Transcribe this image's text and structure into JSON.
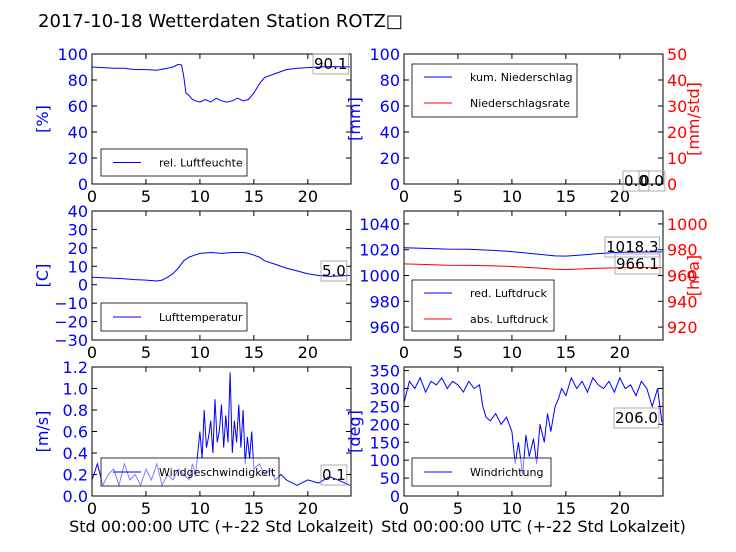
{
  "page_title": "2017-10-18 Wetterdaten Station ROTZ□",
  "colors": {
    "blue": "#0000ff",
    "red": "#ff0000",
    "black": "#000000",
    "light_blue": "#7777ff"
  },
  "chart_data": [
    {
      "id": "humidity",
      "type": "line",
      "xlim": [
        0,
        24
      ],
      "x_ticks": [
        "0",
        "5",
        "10",
        "15",
        "20"
      ],
      "ylim": [
        0,
        100
      ],
      "y_ticks": [
        "0",
        "20",
        "40",
        "60",
        "80",
        "100"
      ],
      "ylabel": "[%]",
      "ylabel_color": "#0000ff",
      "legend_position": "lower-left",
      "series": [
        {
          "name": "rel. Luftfeuchte",
          "color": "#0000ff",
          "x": [
            0,
            1,
            2,
            3,
            4,
            5,
            6,
            7,
            7.5,
            8,
            8.3,
            8.5,
            8.7,
            9,
            9.3,
            9.6,
            10,
            10.5,
            11,
            11.5,
            12,
            12.5,
            13,
            13.5,
            14,
            14.5,
            15,
            15.5,
            16,
            17,
            18,
            19,
            20,
            21,
            22,
            23,
            23.9
          ],
          "y": [
            90,
            89.5,
            89,
            89,
            88,
            88,
            87.5,
            89,
            90,
            92,
            91.5,
            83,
            70,
            68,
            65,
            64,
            63,
            65,
            63,
            66,
            64,
            63,
            64,
            66,
            64,
            65,
            70,
            77,
            82,
            85,
            88,
            89,
            89.5,
            90,
            90.3,
            90.2,
            90.1
          ]
        }
      ],
      "last_values": [
        "90.1"
      ]
    },
    {
      "id": "precipitation",
      "type": "line",
      "xlim": [
        0,
        24
      ],
      "x_ticks": [
        "0",
        "5",
        "10",
        "15",
        "20"
      ],
      "ylim": [
        0,
        100
      ],
      "y_ticks": [
        "0",
        "20",
        "40",
        "60",
        "80",
        "100"
      ],
      "ylabel": "[mm]",
      "ylabel_color": "#0000ff",
      "y2lim": [
        0,
        50
      ],
      "y2_ticks": [
        "0",
        "10",
        "20",
        "30",
        "40",
        "50"
      ],
      "y2label": "[mm/std]",
      "y2label_color": "#ff0000",
      "legend_position": "upper-left",
      "series": [
        {
          "name": "kum. Niederschlag",
          "color": "#0000ff",
          "axis": "left",
          "x": [
            0,
            24
          ],
          "y": [
            0,
            0
          ]
        },
        {
          "name": "Niederschlagsrate",
          "color": "#ff0000",
          "axis": "right",
          "x": [
            0,
            24
          ],
          "y": [
            0,
            0
          ]
        }
      ],
      "last_values": [
        "0.0",
        "0.0"
      ]
    },
    {
      "id": "temperature",
      "type": "line",
      "xlim": [
        0,
        24
      ],
      "x_ticks": [
        "0",
        "5",
        "10",
        "15",
        "20"
      ],
      "ylim": [
        -30,
        40
      ],
      "y_ticks": [
        "−30",
        "−20",
        "−10",
        "0",
        "10",
        "20",
        "30",
        "40"
      ],
      "ylabel": "[C]",
      "ylabel_color": "#0000ff",
      "legend_position": "lower-left",
      "series": [
        {
          "name": "Lufttemperatur",
          "color": "#0000ff",
          "x": [
            0,
            1,
            2,
            3,
            4,
            5,
            6,
            6.5,
            7,
            7.5,
            8,
            8.5,
            9,
            9.5,
            10,
            11,
            12,
            13,
            14,
            14.5,
            15,
            15.5,
            16,
            17,
            18,
            19,
            20,
            21,
            22,
            23,
            23.9
          ],
          "y": [
            4,
            3.8,
            3.5,
            3.2,
            2.8,
            2.5,
            2,
            2.5,
            4,
            6,
            9,
            13,
            15,
            16,
            17,
            17.5,
            17,
            17.5,
            17.5,
            17,
            16,
            15,
            13,
            11,
            9,
            7.5,
            6,
            5,
            4.5,
            4.8,
            5.0
          ]
        }
      ],
      "last_values": [
        "5.0"
      ]
    },
    {
      "id": "pressure",
      "type": "line",
      "xlim": [
        0,
        24
      ],
      "x_ticks": [
        "0",
        "5",
        "10",
        "15",
        "20"
      ],
      "ylim": [
        950,
        1050
      ],
      "y_ticks": [
        "960",
        "980",
        "1000",
        "1020",
        "1040"
      ],
      "ylabel": "",
      "y2lim": [
        910,
        1010
      ],
      "y2_ticks": [
        "920",
        "940",
        "960",
        "980",
        "1000"
      ],
      "y2label": "[hPa]",
      "y2label_color": "#ff0000",
      "legend_position": "lower-left",
      "series": [
        {
          "name": "red. Luftdruck",
          "color": "#0000ff",
          "axis": "left",
          "x": [
            0,
            2,
            4,
            6,
            8,
            10,
            12,
            14,
            15,
            16,
            18,
            20,
            22,
            23.9
          ],
          "y": [
            1021.5,
            1021,
            1020.5,
            1020.3,
            1019.5,
            1018.5,
            1016.8,
            1015.2,
            1015,
            1015.6,
            1017,
            1018,
            1018.2,
            1018.3
          ]
        },
        {
          "name": "abs. Luftdruck",
          "color": "#ff0000",
          "axis": "right",
          "x": [
            0,
            2,
            4,
            6,
            8,
            10,
            12,
            14,
            15,
            16,
            18,
            20,
            22,
            23.9
          ],
          "y": [
            969,
            968.5,
            968,
            967.8,
            967.5,
            967,
            966,
            964.8,
            964.6,
            965,
            965.6,
            966,
            966.1,
            966.1
          ]
        }
      ],
      "last_values": [
        "1018.3",
        "966.1"
      ]
    },
    {
      "id": "windspeed",
      "type": "line",
      "xlim": [
        0,
        24
      ],
      "x_ticks": [
        "0",
        "5",
        "10",
        "15",
        "20"
      ],
      "ylim": [
        0,
        1.2
      ],
      "y_ticks": [
        "0.0",
        "0.2",
        "0.4",
        "0.6",
        "0.8",
        "1.0",
        "1.2"
      ],
      "ylabel": "[m/s]",
      "ylabel_color": "#0000ff",
      "xlabel": "Std 00:00:00 UTC (+-22 Std Lokalzeit)",
      "legend_position": "lower-left",
      "series": [
        {
          "name": "Windgeschwindigkeit",
          "color": "#0000ff",
          "x": [
            0,
            0.5,
            1,
            1.5,
            2,
            2.5,
            3,
            3.5,
            4,
            4.5,
            5,
            5.5,
            6,
            6.5,
            7,
            7.5,
            8,
            8.5,
            9,
            9.3,
            9.6,
            10,
            10.2,
            10.4,
            10.6,
            10.8,
            11,
            11.2,
            11.4,
            11.6,
            11.8,
            12,
            12.2,
            12.4,
            12.6,
            12.8,
            13,
            13.2,
            13.4,
            13.6,
            13.8,
            14,
            14.2,
            14.4,
            14.6,
            14.8,
            15,
            15.5,
            16,
            16.5,
            17,
            17.5,
            18,
            19,
            20,
            21,
            22,
            23,
            23.9
          ],
          "y": [
            0.15,
            0.3,
            0.1,
            0.2,
            0.25,
            0.1,
            0.3,
            0.15,
            0.2,
            0.1,
            0.25,
            0.15,
            0.3,
            0.1,
            0.2,
            0.15,
            0.25,
            0.2,
            0.15,
            0.3,
            0.2,
            0.6,
            0.35,
            0.8,
            0.45,
            0.55,
            0.7,
            0.4,
            0.9,
            0.5,
            0.6,
            0.85,
            0.45,
            0.75,
            0.5,
            1.15,
            0.4,
            0.7,
            0.5,
            0.85,
            0.45,
            0.8,
            0.3,
            0.55,
            0.35,
            0.6,
            0.25,
            0.3,
            0.2,
            0.25,
            0.15,
            0.2,
            0.15,
            0.1,
            0.15,
            0.12,
            0.18,
            0.14,
            0.1
          ]
        }
      ],
      "last_values": [
        "0.1"
      ]
    },
    {
      "id": "winddir",
      "type": "line",
      "xlim": [
        0,
        24
      ],
      "x_ticks": [
        "0",
        "5",
        "10",
        "15",
        "20"
      ],
      "ylim": [
        0,
        360
      ],
      "y_ticks": [
        "0",
        "50",
        "100",
        "150",
        "200",
        "250",
        "300",
        "350"
      ],
      "ylabel": "[deg]",
      "ylabel_color": "#0000ff",
      "xlabel": "Std 00:00:00 UTC (+-22 Std Lokalzeit)",
      "legend_position": "lower-left",
      "series": [
        {
          "name": "Windrichtung",
          "color": "#0000ff",
          "x": [
            0,
            0.5,
            1,
            1.5,
            2,
            2.5,
            3,
            3.5,
            4,
            4.5,
            5,
            5.5,
            6,
            6.5,
            7,
            7.3,
            7.6,
            8,
            8.5,
            9,
            9.5,
            10,
            10.3,
            10.6,
            11,
            11.3,
            11.6,
            12,
            12.3,
            12.6,
            13,
            13.3,
            13.6,
            14,
            14.3,
            14.6,
            15,
            15.5,
            16,
            16.5,
            17,
            17.5,
            18,
            18.5,
            19,
            19.5,
            20,
            20.5,
            21,
            21.5,
            22,
            22.5,
            23,
            23.5,
            23.9
          ],
          "y": [
            260,
            320,
            300,
            330,
            290,
            320,
            310,
            330,
            300,
            320,
            310,
            290,
            320,
            300,
            310,
            250,
            220,
            210,
            230,
            200,
            220,
            180,
            90,
            150,
            60,
            170,
            110,
            160,
            90,
            200,
            150,
            230,
            180,
            250,
            270,
            300,
            280,
            330,
            300,
            320,
            290,
            330,
            310,
            300,
            320,
            290,
            330,
            300,
            310,
            280,
            320,
            300,
            250,
            300,
            206
          ]
        }
      ],
      "last_values": [
        "206.0"
      ]
    }
  ]
}
